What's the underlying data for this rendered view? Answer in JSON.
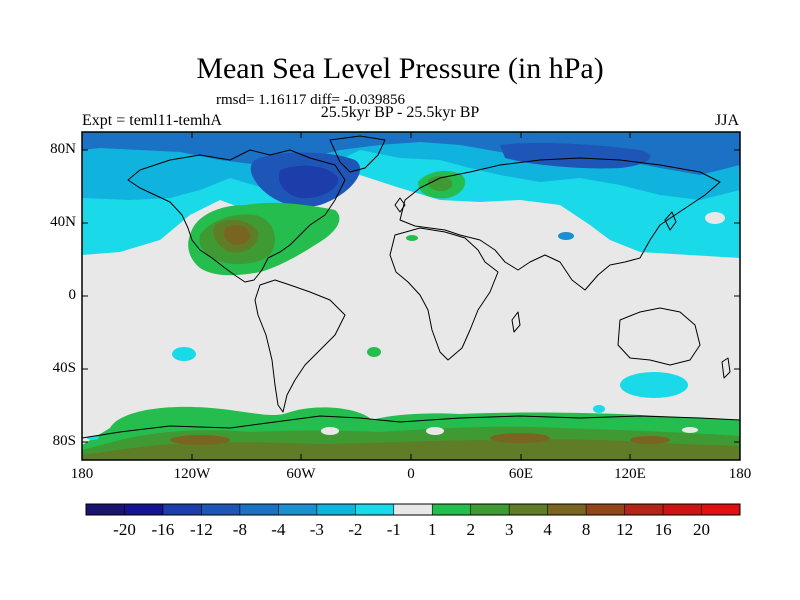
{
  "title": "Mean Sea Level Pressure (in hPa)",
  "stats": "rmsd= 1.16117 diff= -0.039856",
  "subtitle": "25.5kyr BP - 25.5kyr BP",
  "experiment": "Expt = teml11-temhA",
  "season": "JJA",
  "lat_labels": [
    "80N",
    "40N",
    "0",
    "40S",
    "80S"
  ],
  "lon_labels": [
    "180",
    "120W",
    "60W",
    "0",
    "60E",
    "120E",
    "180"
  ],
  "colorbar": {
    "labels": [
      "-20",
      "-16",
      "-12",
      "-8",
      "-4",
      "-3",
      "-2",
      "-1",
      "1",
      "2",
      "3",
      "4",
      "8",
      "12",
      "16",
      "20"
    ],
    "colors": [
      "#1a1470",
      "#15138f",
      "#1d3eaa",
      "#1e56b8",
      "#1b72c4",
      "#1a90d0",
      "#10b3dd",
      "#1ad9e8",
      "#e8e8e8",
      "#25bd4e",
      "#3f9a34",
      "#5e7d26",
      "#7a6421",
      "#92451c",
      "#b2261a",
      "#cc1414",
      "#e01010"
    ]
  }
}
